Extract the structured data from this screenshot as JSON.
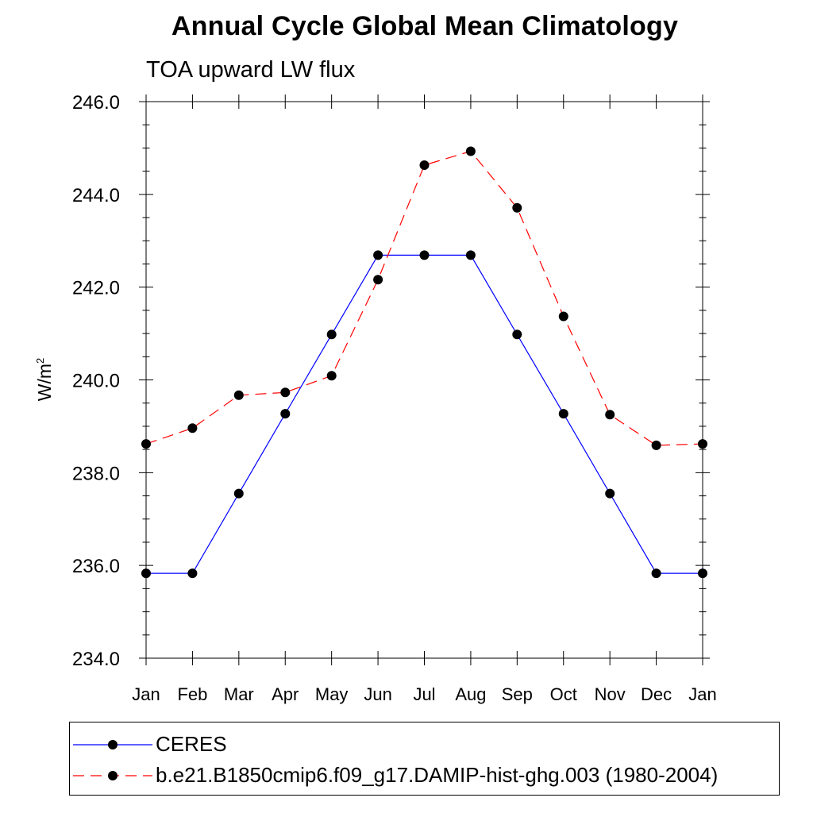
{
  "chart_data": {
    "type": "line",
    "title": "Annual Cycle Global Mean Climatology",
    "subtitle": "TOA upward LW flux",
    "ylabel": "W/m",
    "ylabel_superscript": "2",
    "xlabel": "",
    "categories": [
      "Jan",
      "Feb",
      "Mar",
      "Apr",
      "May",
      "Jun",
      "Jul",
      "Aug",
      "Sep",
      "Oct",
      "Nov",
      "Dec",
      "Jan"
    ],
    "ylim": [
      234.0,
      246.0
    ],
    "yticks": [
      "234.0",
      "236.0",
      "238.0",
      "240.0",
      "242.0",
      "244.0",
      "246.0"
    ],
    "series": [
      {
        "name": "CERES",
        "color": "#0000ff",
        "style": "solid",
        "marker": "filled-circle",
        "values": [
          235.83,
          235.83,
          237.55,
          239.27,
          240.98,
          242.69,
          242.69,
          242.69,
          240.98,
          239.27,
          237.55,
          235.83,
          235.83
        ]
      },
      {
        "name": "b.e21.B1850cmip6.f09_g17.DAMIP-hist-ghg.003 (1980-2004)",
        "color": "#ff0000",
        "style": "dashed",
        "marker": "filled-circle",
        "values": [
          238.62,
          238.96,
          239.67,
          239.73,
          240.09,
          242.16,
          244.63,
          244.93,
          243.71,
          241.37,
          239.25,
          238.59,
          238.62
        ]
      }
    ],
    "legend_placement": "bottom"
  }
}
